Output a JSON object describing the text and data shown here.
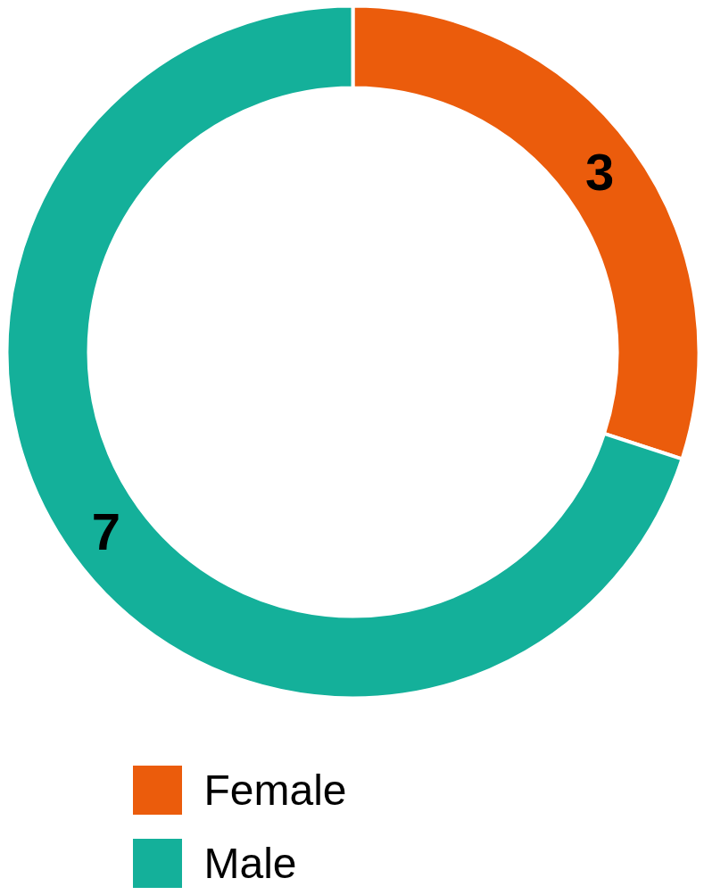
{
  "chart_data": {
    "type": "donut",
    "categories": [
      "Female",
      "Male"
    ],
    "values": [
      3,
      7
    ],
    "colors": [
      "#eb5c0c",
      "#14b09a"
    ],
    "data_labels": true,
    "legend": "bottom"
  }
}
